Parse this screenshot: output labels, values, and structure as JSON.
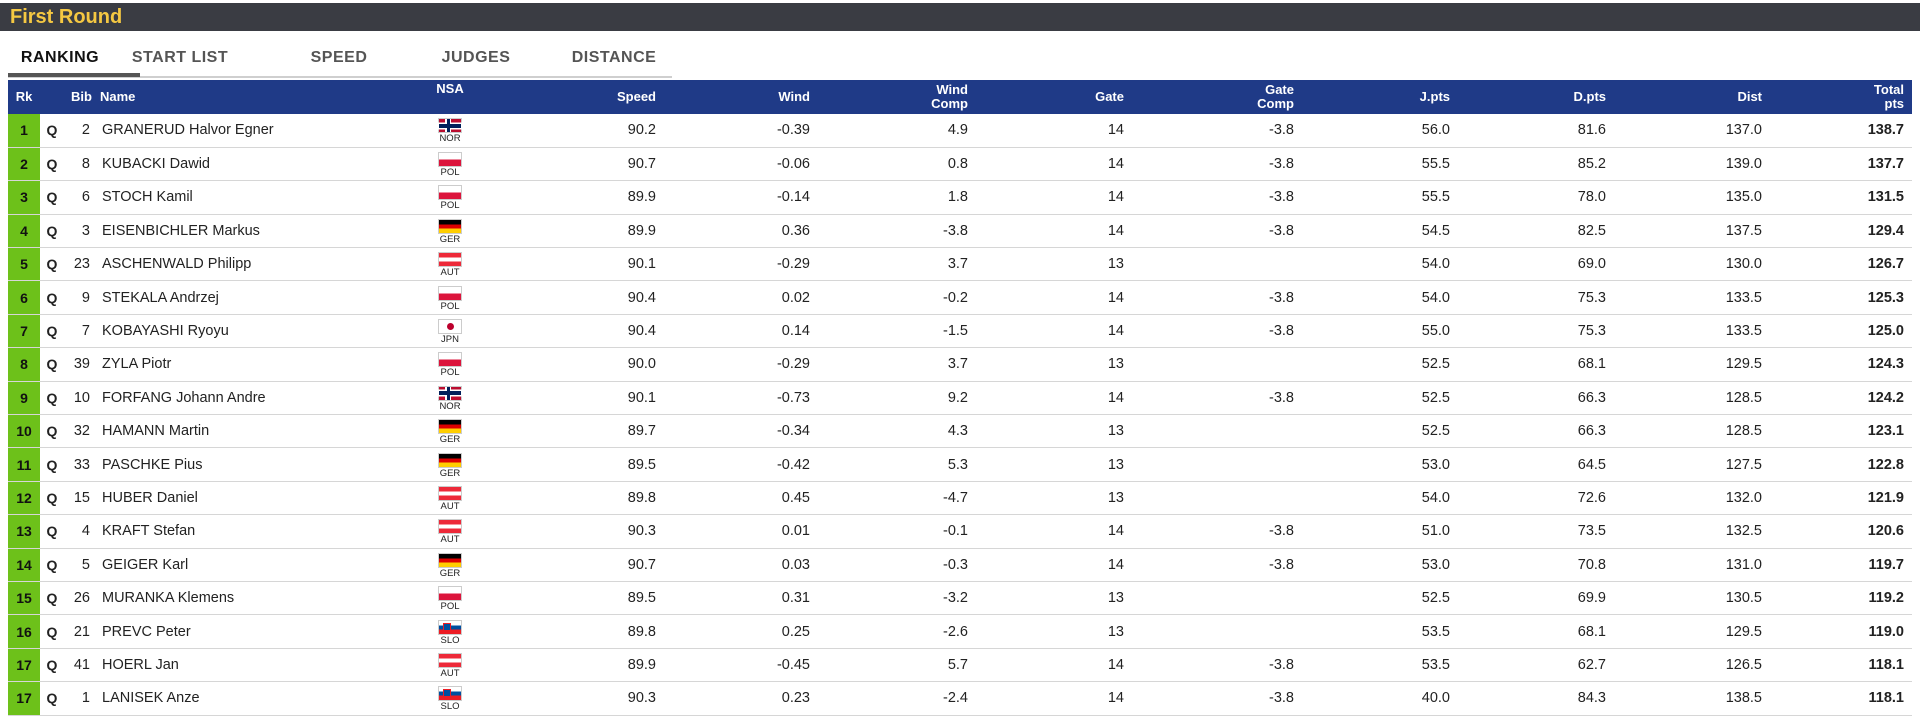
{
  "section_title": "First Round",
  "tabs": [
    "RANKING",
    "START LIST",
    "SPEED",
    "JUDGES",
    "DISTANCE"
  ],
  "active_tab": "RANKING",
  "columns": {
    "rk": "Rk",
    "bib": "Bib",
    "name": "Name",
    "nsa": "NSA",
    "speed": "Speed",
    "wind": "Wind",
    "wind_comp_1": "Wind",
    "wind_comp_2": "Comp",
    "gate": "Gate",
    "gate_comp_1": "Gate",
    "gate_comp_2": "Comp",
    "jpts": "J.pts",
    "dpts": "D.pts",
    "dist": "Dist",
    "total_1": "Total",
    "total_2": "pts"
  },
  "rows": [
    {
      "rk": "1",
      "q": "Q",
      "bib": "2",
      "name": "GRANERUD Halvor Egner",
      "nsa": "NOR",
      "speed": "90.2",
      "wind": "-0.39",
      "wind_comp": "4.9",
      "gate": "14",
      "gate_comp": "-3.8",
      "jpts": "56.0",
      "dpts": "81.6",
      "dist": "137.0",
      "total": "138.7"
    },
    {
      "rk": "2",
      "q": "Q",
      "bib": "8",
      "name": "KUBACKI Dawid",
      "nsa": "POL",
      "speed": "90.7",
      "wind": "-0.06",
      "wind_comp": "0.8",
      "gate": "14",
      "gate_comp": "-3.8",
      "jpts": "55.5",
      "dpts": "85.2",
      "dist": "139.0",
      "total": "137.7"
    },
    {
      "rk": "3",
      "q": "Q",
      "bib": "6",
      "name": "STOCH Kamil",
      "nsa": "POL",
      "speed": "89.9",
      "wind": "-0.14",
      "wind_comp": "1.8",
      "gate": "14",
      "gate_comp": "-3.8",
      "jpts": "55.5",
      "dpts": "78.0",
      "dist": "135.0",
      "total": "131.5"
    },
    {
      "rk": "4",
      "q": "Q",
      "bib": "3",
      "name": "EISENBICHLER Markus",
      "nsa": "GER",
      "speed": "89.9",
      "wind": "0.36",
      "wind_comp": "-3.8",
      "gate": "14",
      "gate_comp": "-3.8",
      "jpts": "54.5",
      "dpts": "82.5",
      "dist": "137.5",
      "total": "129.4"
    },
    {
      "rk": "5",
      "q": "Q",
      "bib": "23",
      "name": "ASCHENWALD Philipp",
      "nsa": "AUT",
      "speed": "90.1",
      "wind": "-0.29",
      "wind_comp": "3.7",
      "gate": "13",
      "gate_comp": "",
      "jpts": "54.0",
      "dpts": "69.0",
      "dist": "130.0",
      "total": "126.7"
    },
    {
      "rk": "6",
      "q": "Q",
      "bib": "9",
      "name": "STEKALA Andrzej",
      "nsa": "POL",
      "speed": "90.4",
      "wind": "0.02",
      "wind_comp": "-0.2",
      "gate": "14",
      "gate_comp": "-3.8",
      "jpts": "54.0",
      "dpts": "75.3",
      "dist": "133.5",
      "total": "125.3"
    },
    {
      "rk": "7",
      "q": "Q",
      "bib": "7",
      "name": "KOBAYASHI Ryoyu",
      "nsa": "JPN",
      "speed": "90.4",
      "wind": "0.14",
      "wind_comp": "-1.5",
      "gate": "14",
      "gate_comp": "-3.8",
      "jpts": "55.0",
      "dpts": "75.3",
      "dist": "133.5",
      "total": "125.0"
    },
    {
      "rk": "8",
      "q": "Q",
      "bib": "39",
      "name": "ZYLA Piotr",
      "nsa": "POL",
      "speed": "90.0",
      "wind": "-0.29",
      "wind_comp": "3.7",
      "gate": "13",
      "gate_comp": "",
      "jpts": "52.5",
      "dpts": "68.1",
      "dist": "129.5",
      "total": "124.3"
    },
    {
      "rk": "9",
      "q": "Q",
      "bib": "10",
      "name": "FORFANG Johann Andre",
      "nsa": "NOR",
      "speed": "90.1",
      "wind": "-0.73",
      "wind_comp": "9.2",
      "gate": "14",
      "gate_comp": "-3.8",
      "jpts": "52.5",
      "dpts": "66.3",
      "dist": "128.5",
      "total": "124.2"
    },
    {
      "rk": "10",
      "q": "Q",
      "bib": "32",
      "name": "HAMANN Martin",
      "nsa": "GER",
      "speed": "89.7",
      "wind": "-0.34",
      "wind_comp": "4.3",
      "gate": "13",
      "gate_comp": "",
      "jpts": "52.5",
      "dpts": "66.3",
      "dist": "128.5",
      "total": "123.1"
    },
    {
      "rk": "11",
      "q": "Q",
      "bib": "33",
      "name": "PASCHKE Pius",
      "nsa": "GER",
      "speed": "89.5",
      "wind": "-0.42",
      "wind_comp": "5.3",
      "gate": "13",
      "gate_comp": "",
      "jpts": "53.0",
      "dpts": "64.5",
      "dist": "127.5",
      "total": "122.8"
    },
    {
      "rk": "12",
      "q": "Q",
      "bib": "15",
      "name": "HUBER Daniel",
      "nsa": "AUT",
      "speed": "89.8",
      "wind": "0.45",
      "wind_comp": "-4.7",
      "gate": "13",
      "gate_comp": "",
      "jpts": "54.0",
      "dpts": "72.6",
      "dist": "132.0",
      "total": "121.9"
    },
    {
      "rk": "13",
      "q": "Q",
      "bib": "4",
      "name": "KRAFT Stefan",
      "nsa": "AUT",
      "speed": "90.3",
      "wind": "0.01",
      "wind_comp": "-0.1",
      "gate": "14",
      "gate_comp": "-3.8",
      "jpts": "51.0",
      "dpts": "73.5",
      "dist": "132.5",
      "total": "120.6"
    },
    {
      "rk": "14",
      "q": "Q",
      "bib": "5",
      "name": "GEIGER Karl",
      "nsa": "GER",
      "speed": "90.7",
      "wind": "0.03",
      "wind_comp": "-0.3",
      "gate": "14",
      "gate_comp": "-3.8",
      "jpts": "53.0",
      "dpts": "70.8",
      "dist": "131.0",
      "total": "119.7"
    },
    {
      "rk": "15",
      "q": "Q",
      "bib": "26",
      "name": "MURANKA Klemens",
      "nsa": "POL",
      "speed": "89.5",
      "wind": "0.31",
      "wind_comp": "-3.2",
      "gate": "13",
      "gate_comp": "",
      "jpts": "52.5",
      "dpts": "69.9",
      "dist": "130.5",
      "total": "119.2"
    },
    {
      "rk": "16",
      "q": "Q",
      "bib": "21",
      "name": "PREVC Peter",
      "nsa": "SLO",
      "speed": "89.8",
      "wind": "0.25",
      "wind_comp": "-2.6",
      "gate": "13",
      "gate_comp": "",
      "jpts": "53.5",
      "dpts": "68.1",
      "dist": "129.5",
      "total": "119.0"
    },
    {
      "rk": "17",
      "q": "Q",
      "bib": "41",
      "name": "HOERL Jan",
      "nsa": "AUT",
      "speed": "89.9",
      "wind": "-0.45",
      "wind_comp": "5.7",
      "gate": "14",
      "gate_comp": "-3.8",
      "jpts": "53.5",
      "dpts": "62.7",
      "dist": "126.5",
      "total": "118.1"
    },
    {
      "rk": "17",
      "q": "Q",
      "bib": "1",
      "name": "LANISEK Anze",
      "nsa": "SLO",
      "speed": "90.3",
      "wind": "0.23",
      "wind_comp": "-2.4",
      "gate": "14",
      "gate_comp": "-3.8",
      "jpts": "40.0",
      "dpts": "84.3",
      "dist": "138.5",
      "total": "118.1"
    }
  ],
  "colors": {
    "title_bar": "#3a3c43",
    "title_text": "#f5c842",
    "header_bg": "#1f3a87",
    "rank_bg": "#6dc11a"
  }
}
